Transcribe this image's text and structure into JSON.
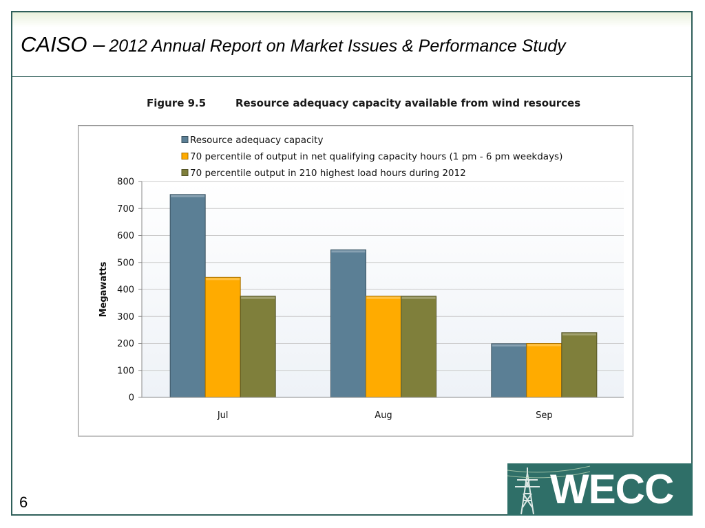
{
  "slide": {
    "title_main": "CAISO –",
    "title_sub": "2012 Annual Report on Market Issues & Performance Study",
    "page_number": "6"
  },
  "figure": {
    "number": "Figure 9.5",
    "caption": "Resource adequacy capacity available from wind resources"
  },
  "logo": {
    "text": "WECC",
    "icon": "transmission-tower-icon"
  },
  "colors": {
    "frame": "#2f5f5a",
    "logo_bg": "#2f6f68"
  },
  "chart_data": {
    "type": "bar",
    "title": "",
    "xlabel": "",
    "ylabel": "Megawatts",
    "ylim": [
      0,
      800
    ],
    "yticks": [
      0,
      100,
      200,
      300,
      400,
      500,
      600,
      700,
      800
    ],
    "grid": true,
    "legend_position": "top",
    "categories": [
      "Jul",
      "Aug",
      "Sep"
    ],
    "series": [
      {
        "name": "Resource adequacy capacity",
        "color": "#5b7f95",
        "values": [
          752,
          547,
          199
        ]
      },
      {
        "name": "70 percentile of output in net qualifying capacity hours (1 pm - 6 pm weekdays)",
        "color": "#ffab00",
        "values": [
          445,
          375,
          200
        ]
      },
      {
        "name": "70 percentile output in 210 highest load hours during 2012",
        "color": "#7f7f3b",
        "values": [
          375,
          375,
          240
        ]
      }
    ]
  }
}
